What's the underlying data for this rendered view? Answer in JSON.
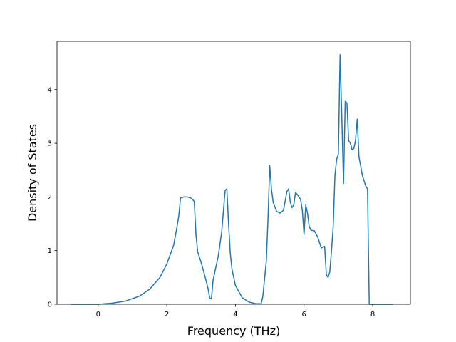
{
  "chart_data": {
    "type": "line",
    "title": "",
    "xlabel": "Frequency (THz)",
    "ylabel": "Density of States",
    "xlim": [
      -1.2,
      9.1
    ],
    "ylim": [
      0,
      4.9
    ],
    "xticks": [
      0,
      2,
      4,
      6,
      8
    ],
    "yticks": [
      0,
      1,
      2,
      3,
      4
    ],
    "xtick_labels": [
      "0",
      "2",
      "4",
      "6",
      "8"
    ],
    "ytick_labels": [
      "0",
      "1",
      "2",
      "3",
      "4"
    ],
    "grid": false,
    "legend": "none",
    "series": [
      {
        "color": "#1f77b4",
        "x": [
          -0.8,
          -0.4,
          0,
          0.4,
          0.8,
          1.2,
          1.5,
          1.8,
          2.0,
          2.2,
          2.3,
          2.35,
          2.4,
          2.5,
          2.6,
          2.7,
          2.8,
          2.85,
          2.9,
          3.0,
          3.1,
          3.2,
          3.25,
          3.3,
          3.35,
          3.4,
          3.5,
          3.6,
          3.7,
          3.75,
          3.8,
          3.85,
          3.9,
          4.0,
          4.2,
          4.4,
          4.6,
          4.75,
          4.8,
          4.9,
          4.95,
          5.0,
          5.05,
          5.1,
          5.2,
          5.3,
          5.4,
          5.5,
          5.55,
          5.6,
          5.65,
          5.7,
          5.75,
          5.8,
          5.85,
          5.9,
          5.95,
          6.0,
          6.05,
          6.1,
          6.15,
          6.2,
          6.3,
          6.4,
          6.5,
          6.6,
          6.65,
          6.7,
          6.75,
          6.8,
          6.85,
          6.9,
          6.95,
          7.0,
          7.05,
          7.1,
          7.15,
          7.2,
          7.25,
          7.3,
          7.35,
          7.4,
          7.45,
          7.5,
          7.55,
          7.6,
          7.7,
          7.8,
          7.85,
          7.9,
          8.0,
          8.3,
          8.6
        ],
        "y": [
          0,
          0,
          0,
          0.02,
          0.06,
          0.15,
          0.28,
          0.5,
          0.75,
          1.1,
          1.45,
          1.65,
          1.98,
          2.0,
          2.0,
          1.98,
          1.92,
          1.3,
          0.98,
          0.78,
          0.55,
          0.3,
          0.12,
          0.1,
          0.45,
          0.6,
          0.9,
          1.35,
          2.12,
          2.15,
          1.5,
          0.95,
          0.65,
          0.35,
          0.12,
          0.04,
          0.01,
          0.01,
          0.15,
          0.8,
          1.6,
          2.58,
          2.15,
          1.9,
          1.73,
          1.7,
          1.75,
          2.1,
          2.15,
          1.9,
          1.8,
          1.85,
          2.08,
          2.05,
          2.0,
          1.95,
          1.75,
          1.3,
          1.85,
          1.7,
          1.45,
          1.38,
          1.37,
          1.25,
          1.05,
          1.08,
          0.55,
          0.5,
          0.6,
          1.0,
          1.45,
          2.4,
          2.7,
          2.8,
          4.65,
          3.5,
          2.25,
          3.78,
          3.75,
          3.05,
          3.0,
          2.88,
          2.9,
          3.05,
          3.45,
          2.75,
          2.4,
          2.2,
          2.15,
          0.0,
          0,
          0,
          0
        ]
      }
    ]
  }
}
